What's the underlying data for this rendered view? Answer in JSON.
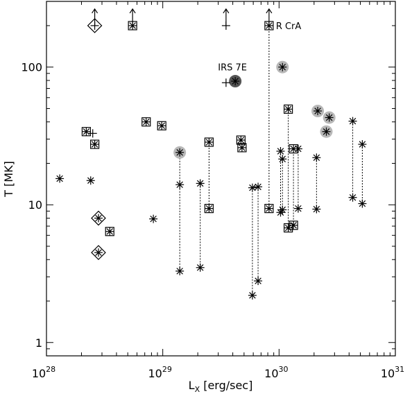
{
  "chart_data": {
    "type": "scatter",
    "title": "",
    "xlabel": {
      "main": "L",
      "sub": "X",
      "rest": " [erg/sec]"
    },
    "ylabel": "T [MK]",
    "xscale": "log",
    "yscale": "log",
    "xlim": [
      1e+28,
      1e+31
    ],
    "ylim": [
      0.8,
      300
    ],
    "grid": false,
    "x_ticks": [
      {
        "value": 1e+28,
        "base": "10",
        "exp": "28"
      },
      {
        "value": 1e+29,
        "base": "10",
        "exp": "29"
      },
      {
        "value": 1e+30,
        "base": "10",
        "exp": "30"
      },
      {
        "value": 1e+31,
        "base": "10",
        "exp": "31"
      }
    ],
    "y_ticks": [
      {
        "value": 1,
        "label": "1"
      },
      {
        "value": 10,
        "label": "10"
      },
      {
        "value": 100,
        "label": "100"
      }
    ],
    "annotations": [
      {
        "text": "IRS 7E",
        "x": 5.6e+29,
        "y": 100
      },
      {
        "text": "R CrA",
        "x": 9.4e+29,
        "y": 200
      }
    ],
    "points": [
      {
        "x": 1.3e+28,
        "y": 15.5,
        "symbol": "asterisk"
      },
      {
        "x": 2.2e+28,
        "y": 34,
        "symbol": "asterisk-box"
      },
      {
        "x": 2.5e+28,
        "y": 33,
        "symbol": "plus"
      },
      {
        "x": 2.4e+28,
        "y": 15,
        "symbol": "asterisk"
      },
      {
        "x": 2.6e+28,
        "y": 27.5,
        "symbol": "asterisk-box"
      },
      {
        "x": 2.8e+28,
        "y": 8,
        "symbol": "asterisk-diamond"
      },
      {
        "x": 2.8e+28,
        "y": 4.5,
        "symbol": "asterisk-diamond"
      },
      {
        "x": 2.6e+28,
        "y": 200,
        "symbol": "plus-diamond",
        "upper": true
      },
      {
        "x": 3.5e+28,
        "y": 6.4,
        "symbol": "asterisk-box"
      },
      {
        "x": 5.5e+28,
        "y": 200,
        "symbol": "asterisk-box",
        "upper": true
      },
      {
        "x": 7.2e+28,
        "y": 40,
        "symbol": "asterisk-box"
      },
      {
        "x": 8.3e+28,
        "y": 7.9,
        "symbol": "asterisk"
      },
      {
        "x": 9.8e+28,
        "y": 37.5,
        "symbol": "asterisk-box"
      },
      {
        "x": 1.4e+29,
        "y": 24,
        "symbol": "asterisk-gray"
      },
      {
        "x": 1.4e+29,
        "y": 14,
        "symbol": "asterisk"
      },
      {
        "x": 1.4e+29,
        "y": 3.3,
        "symbol": "asterisk"
      },
      {
        "x": 2.1e+29,
        "y": 14.3,
        "symbol": "asterisk"
      },
      {
        "x": 2.1e+29,
        "y": 3.5,
        "symbol": "asterisk"
      },
      {
        "x": 2.5e+29,
        "y": 28.5,
        "symbol": "asterisk-box"
      },
      {
        "x": 2.5e+29,
        "y": 9.4,
        "symbol": "asterisk-box"
      },
      {
        "x": 3.5e+29,
        "y": 77,
        "symbol": "plus"
      },
      {
        "x": 3.5e+29,
        "y": 200,
        "symbol": "plus",
        "upper": true
      },
      {
        "x": 4.2e+29,
        "y": 79,
        "symbol": "asterisk-dark"
      },
      {
        "x": 4.7e+29,
        "y": 29.5,
        "symbol": "asterisk-box"
      },
      {
        "x": 4.8e+29,
        "y": 26,
        "symbol": "asterisk-box"
      },
      {
        "x": 5.9e+29,
        "y": 13.3,
        "symbol": "asterisk"
      },
      {
        "x": 5.9e+29,
        "y": 2.2,
        "symbol": "asterisk"
      },
      {
        "x": 6.6e+29,
        "y": 13.5,
        "symbol": "asterisk"
      },
      {
        "x": 6.6e+29,
        "y": 2.8,
        "symbol": "asterisk"
      },
      {
        "x": 8.2e+29,
        "y": 200,
        "symbol": "asterisk-box",
        "upper": true
      },
      {
        "x": 8.2e+29,
        "y": 9.4,
        "symbol": "asterisk-box"
      },
      {
        "x": 1.03e+30,
        "y": 24.5,
        "symbol": "asterisk"
      },
      {
        "x": 1.03e+30,
        "y": 8.8,
        "symbol": "asterisk"
      },
      {
        "x": 1.07e+30,
        "y": 21.5,
        "symbol": "asterisk"
      },
      {
        "x": 1.07e+30,
        "y": 9.2,
        "symbol": "asterisk"
      },
      {
        "x": 1.07e+30,
        "y": 100,
        "symbol": "asterisk-gray"
      },
      {
        "x": 1.2e+30,
        "y": 49.5,
        "symbol": "asterisk-box"
      },
      {
        "x": 1.2e+30,
        "y": 6.8,
        "symbol": "asterisk-box"
      },
      {
        "x": 1.33e+30,
        "y": 25.5,
        "symbol": "asterisk-box"
      },
      {
        "x": 1.33e+30,
        "y": 7.1,
        "symbol": "asterisk-box"
      },
      {
        "x": 1.46e+30,
        "y": 25.5,
        "symbol": "asterisk"
      },
      {
        "x": 1.46e+30,
        "y": 9.4,
        "symbol": "asterisk"
      },
      {
        "x": 2.15e+30,
        "y": 48,
        "symbol": "asterisk-gray"
      },
      {
        "x": 2.1e+30,
        "y": 22,
        "symbol": "asterisk"
      },
      {
        "x": 2.1e+30,
        "y": 9.3,
        "symbol": "asterisk"
      },
      {
        "x": 2.55e+30,
        "y": 34,
        "symbol": "asterisk-gray"
      },
      {
        "x": 2.7e+30,
        "y": 43,
        "symbol": "asterisk-gray"
      },
      {
        "x": 4.3e+30,
        "y": 40.5,
        "symbol": "asterisk"
      },
      {
        "x": 4.3e+30,
        "y": 11.3,
        "symbol": "asterisk"
      },
      {
        "x": 5.2e+30,
        "y": 27.5,
        "symbol": "asterisk"
      },
      {
        "x": 5.2e+30,
        "y": 10.2,
        "symbol": "asterisk"
      }
    ],
    "connections": [
      {
        "x": 1.4e+29,
        "y1": 24,
        "y2": 3.3
      },
      {
        "x": 2.1e+29,
        "y1": 14.3,
        "y2": 3.5
      },
      {
        "x": 2.5e+29,
        "y1": 28.5,
        "y2": 9.4
      },
      {
        "x": 5.9e+29,
        "y1": 13.3,
        "y2": 2.2
      },
      {
        "x": 6.6e+29,
        "y1": 13.5,
        "y2": 2.8
      },
      {
        "x": 8.2e+29,
        "y1": 200,
        "y2": 9.4
      },
      {
        "x": 1.03e+30,
        "y1": 24.5,
        "y2": 8.8
      },
      {
        "x": 1.07e+30,
        "y1": 21.5,
        "y2": 9.2
      },
      {
        "x": 1.2e+30,
        "y1": 49.5,
        "y2": 6.8
      },
      {
        "x": 1.33e+30,
        "y1": 25.5,
        "y2": 7.1
      },
      {
        "x": 1.46e+30,
        "y1": 25.5,
        "y2": 9.4
      },
      {
        "x": 2.1e+30,
        "y1": 22,
        "y2": 9.3
      },
      {
        "x": 4.3e+30,
        "y1": 40.5,
        "y2": 11.3
      },
      {
        "x": 5.2e+30,
        "y1": 27.5,
        "y2": 10.2
      }
    ]
  }
}
